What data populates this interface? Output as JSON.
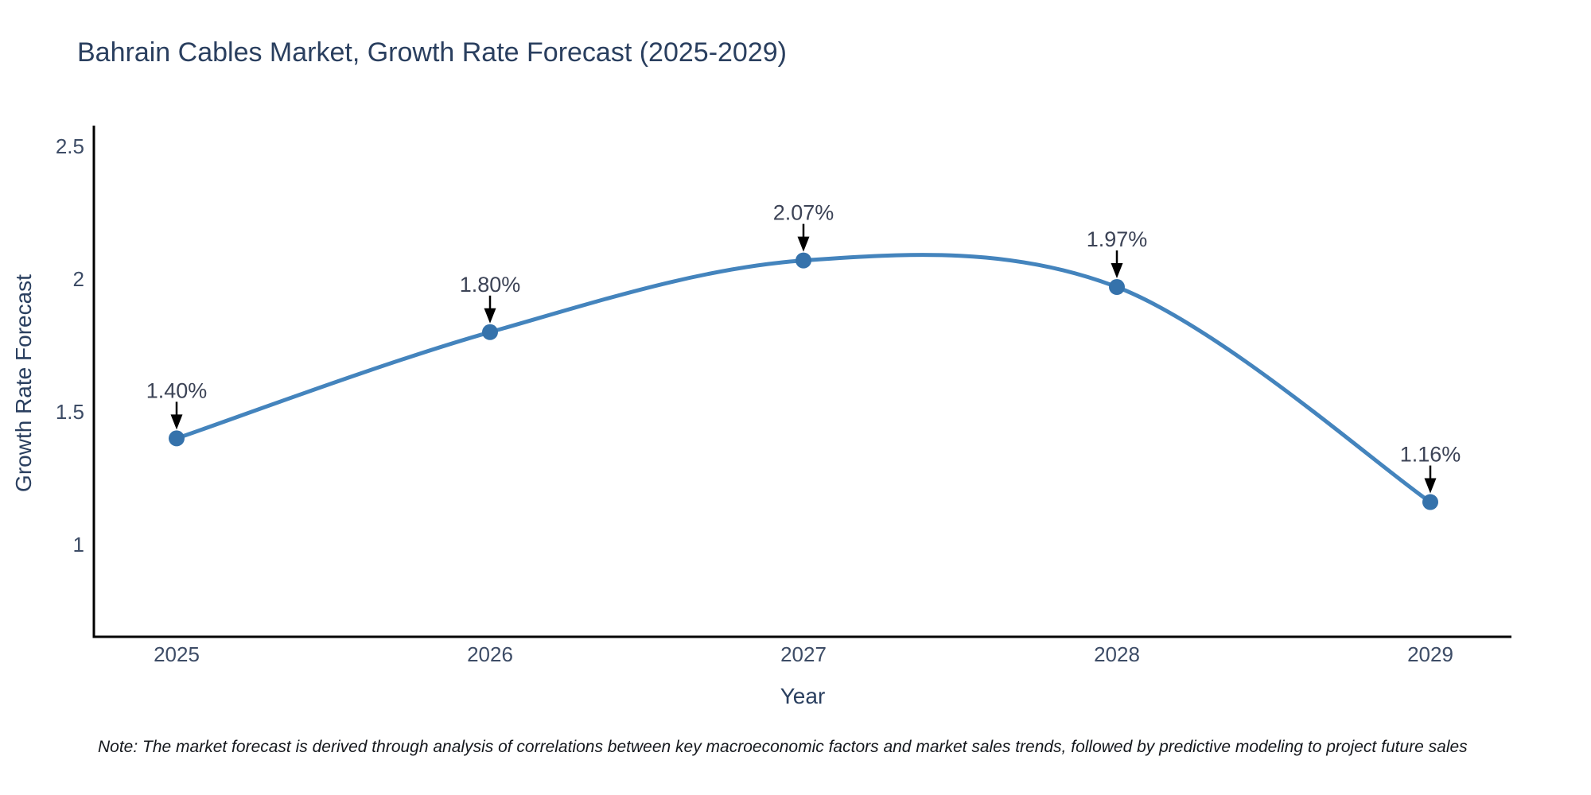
{
  "title": "Bahrain Cables Market, Growth Rate Forecast (2025-2029)",
  "note": "Note: The market forecast is derived through analysis of correlations between key macroeconomic factors and market sales trends, followed by predictive modeling to project future sales",
  "chart_data": {
    "type": "line",
    "line_shape": "spline",
    "title": "Bahrain Cables Market, Growth Rate Forecast (2025-2029)",
    "xlabel": "Year",
    "ylabel": "Growth Rate Forecast",
    "categories": [
      "2025",
      "2026",
      "2027",
      "2028",
      "2029"
    ],
    "values": [
      1.4,
      1.8,
      2.07,
      1.97,
      1.16
    ],
    "point_labels": [
      "1.40%",
      "1.80%",
      "2.07%",
      "1.97%",
      "1.16%"
    ],
    "yticks": [
      2.5,
      2,
      1.5,
      1
    ],
    "ytick_labels": [
      "2.5",
      "2",
      "1.5",
      "1"
    ],
    "ylim": [
      0.65,
      2.57
    ],
    "grid": false,
    "legend": "none",
    "colors": {
      "line": "#4484bd",
      "marker": "#3572ab",
      "arrow": "#000000",
      "axis": "#000000",
      "title_text": "#2a3f5f",
      "tick_text": "#3d4c66",
      "label_text": "#3c4356",
      "note_text": "#15181d",
      "background": "#ffffff"
    }
  }
}
